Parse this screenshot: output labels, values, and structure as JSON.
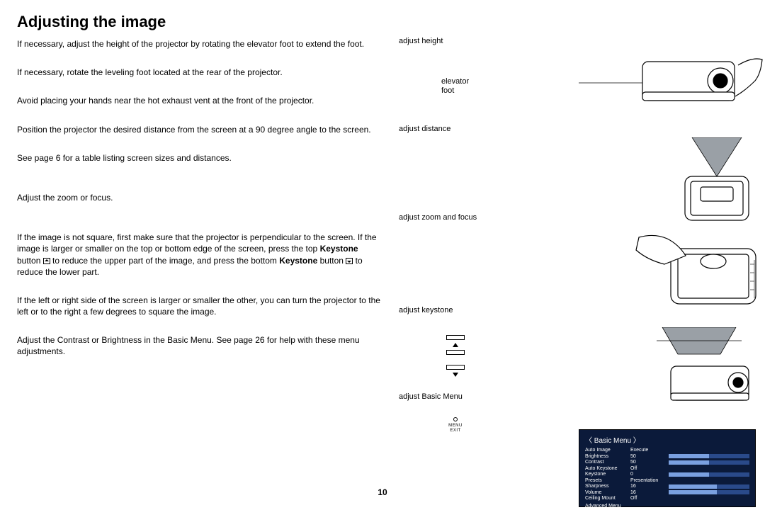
{
  "title": "Adjusting the image",
  "pageNumber": "10",
  "p1": "If necessary, adjust the height of the projector by rotating the elevator foot to extend the foot.",
  "p2": "If necessary, rotate the leveling foot located at the rear of the projector.",
  "p3": "Avoid placing your hands near the hot exhaust vent at the front of the projector.",
  "p4": "Position the projector the desired distance from the screen at a 90 degree angle to the screen.",
  "p5": "See page 6 for a table listing screen sizes and distances.",
  "p6": "Adjust the zoom or focus.",
  "p7a": "If the image is not square, first make sure that the projector is perpendicular to the screen. If the image is larger or smaller on the top or bottom edge of the screen, press the top ",
  "p7bold1": "Keystone",
  "p7b": " button ",
  "p7c": " to reduce the upper part of the image, and press the bottom ",
  "p7bold2": "Keystone",
  "p7d": " button ",
  "p7e": " to reduce the lower part.",
  "p8": "If the left or right side of the screen is larger or smaller the other, you can turn the projector to the left or to the right a few degrees to square the image.",
  "p9": "Adjust the Contrast or Brightness in the Basic Menu. See page 26 for help with these menu adjustments.",
  "labels": {
    "height": "adjust height",
    "elevator": "elevator\nfoot",
    "distance": "adjust distance",
    "zoom": "adjust zoom and focus",
    "keystone": "adjust keystone",
    "basic": "adjust Basic Menu",
    "menuBtn": "MENU\nEXIT"
  },
  "osd": {
    "title": "Basic Menu",
    "rows": [
      {
        "label": "Auto Image",
        "value": "Execute",
        "bar": 0
      },
      {
        "label": "Brightness",
        "value": "50",
        "bar": 0.5
      },
      {
        "label": "Contrast",
        "value": "50",
        "bar": 0.5
      },
      {
        "label": "Auto Keystone",
        "value": "Off",
        "bar": 0
      },
      {
        "label": "Keystone",
        "value": "0",
        "bar": 0.5
      },
      {
        "label": "Presets",
        "value": "Presentation",
        "bar": 0
      },
      {
        "label": "Sharpness",
        "value": "16",
        "bar": 0.6
      },
      {
        "label": "Volume",
        "value": "16",
        "bar": 0.6
      },
      {
        "label": "Ceiling Mount",
        "value": "Off",
        "bar": 0
      }
    ],
    "footer": "Advanced Menu"
  },
  "colors": {
    "osdBg": "#0b1a3a",
    "osdBar": "#2a4a8a",
    "osdFill": "#7aa0e0",
    "trapezoid": "#9aa0a6"
  }
}
